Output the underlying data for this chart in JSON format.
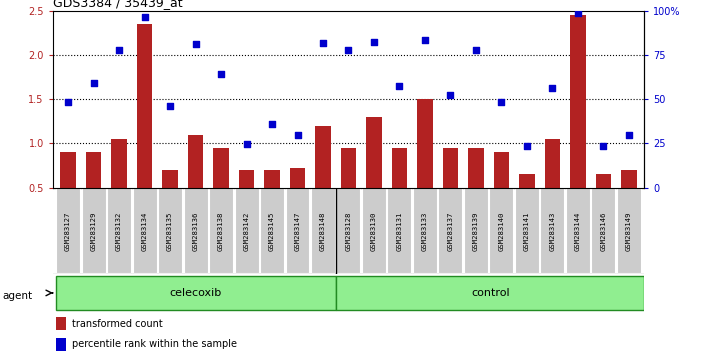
{
  "title": "GDS3384 / 35439_at",
  "samples": [
    "GSM283127",
    "GSM283129",
    "GSM283132",
    "GSM283134",
    "GSM283135",
    "GSM283136",
    "GSM283138",
    "GSM283142",
    "GSM283145",
    "GSM283147",
    "GSM283148",
    "GSM283128",
    "GSM283130",
    "GSM283131",
    "GSM283133",
    "GSM283137",
    "GSM283139",
    "GSM283140",
    "GSM283141",
    "GSM283143",
    "GSM283144",
    "GSM283146",
    "GSM283149"
  ],
  "red_bars": [
    0.9,
    0.9,
    1.05,
    2.35,
    0.7,
    1.1,
    0.95,
    0.7,
    0.7,
    0.72,
    1.2,
    0.95,
    1.3,
    0.95,
    1.5,
    0.95,
    0.95,
    0.9,
    0.65,
    1.05,
    2.45,
    0.65,
    0.7
  ],
  "blue_dots": [
    1.47,
    1.68,
    2.05,
    2.43,
    1.42,
    2.12,
    1.78,
    0.99,
    1.22,
    1.1,
    2.13,
    2.05,
    2.15,
    1.65,
    2.17,
    1.55,
    2.05,
    1.47,
    0.97,
    1.63,
    2.47,
    0.97,
    1.1
  ],
  "celecoxib_count": 11,
  "control_count": 12,
  "bar_color": "#b22222",
  "dot_color": "#0000cc",
  "ylim_left": [
    0.5,
    2.5
  ],
  "ylim_right": [
    0,
    100
  ],
  "yticks_left": [
    0.5,
    1.0,
    1.5,
    2.0,
    2.5
  ],
  "yticks_right": [
    0,
    25,
    50,
    75,
    100
  ],
  "ytick_labels_right": [
    "0",
    "25",
    "50",
    "75",
    "100%"
  ],
  "grid_values": [
    1.0,
    1.5,
    2.0
  ],
  "agent_label": "agent",
  "group1_label": "celecoxib",
  "group2_label": "control",
  "legend_red": "transformed count",
  "legend_blue": "percentile rank within the sample",
  "bar_color_hex": "#b22222",
  "dot_color_hex": "#0000cc",
  "green_light": "#90ee90",
  "green_border": "#228B22",
  "gray_box": "#cccccc",
  "bar_width": 0.6
}
